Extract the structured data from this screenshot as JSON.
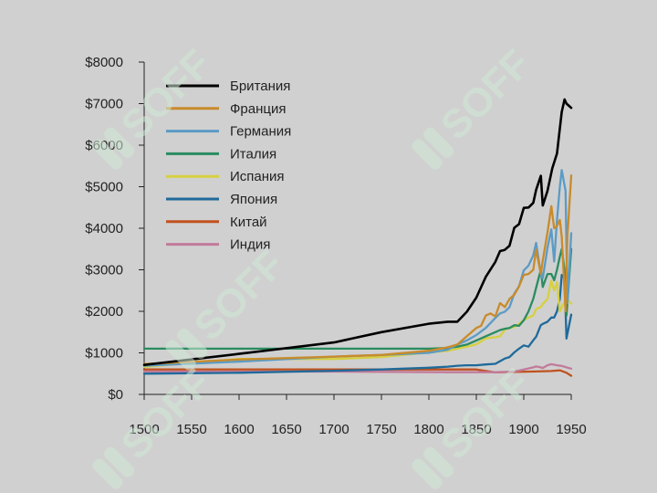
{
  "watermark": {
    "text": "SOFF",
    "color": "#cfe8d6"
  },
  "chart_data": {
    "type": "line",
    "title": "",
    "xlabel": "",
    "ylabel": "",
    "xlim": [
      1500,
      1950
    ],
    "ylim": [
      0,
      8000
    ],
    "x_ticks": [
      1500,
      1550,
      1600,
      1650,
      1700,
      1750,
      1800,
      1850,
      1900,
      1950
    ],
    "x_tick_labels": [
      "1500",
      "1550",
      "1600",
      "1650",
      "1700",
      "1750",
      "1800",
      "1850",
      "1900",
      "1950"
    ],
    "y_ticks": [
      0,
      1000,
      2000,
      3000,
      4000,
      5000,
      6000,
      7000,
      8000
    ],
    "y_tick_labels": [
      "$0",
      "$1000",
      "$2000",
      "$3000",
      "$4000",
      "$5000",
      "$6000",
      "$7000",
      "$8000"
    ],
    "grid": false,
    "legend_position": "top-left",
    "series": [
      {
        "name": "Британия",
        "color": "#000000",
        "x": [
          1500,
          1600,
          1700,
          1750,
          1800,
          1820,
          1830,
          1840,
          1850,
          1860,
          1870,
          1875,
          1880,
          1885,
          1890,
          1895,
          1900,
          1905,
          1910,
          1913,
          1918,
          1920,
          1925,
          1930,
          1935,
          1940,
          1943,
          1945,
          1950
        ],
        "y": [
          710,
          975,
          1250,
          1500,
          1700,
          1750,
          1750,
          1990,
          2330,
          2830,
          3190,
          3450,
          3480,
          3580,
          4010,
          4100,
          4490,
          4500,
          4611,
          4921,
          5262,
          4548,
          4900,
          5440,
          5800,
          6800,
          7100,
          7000,
          6900
        ]
      },
      {
        "name": "Франция",
        "color": "#c98b2b",
        "x": [
          1500,
          1600,
          1700,
          1750,
          1800,
          1820,
          1830,
          1840,
          1850,
          1855,
          1860,
          1865,
          1870,
          1875,
          1880,
          1885,
          1890,
          1895,
          1900,
          1905,
          1910,
          1913,
          1918,
          1920,
          1925,
          1929,
          1932,
          1935,
          1938,
          1940,
          1944,
          1946,
          1950
        ],
        "y": [
          730,
          840,
          910,
          950,
          1050,
          1135,
          1200,
          1400,
          1600,
          1650,
          1900,
          1950,
          1876,
          2200,
          2100,
          2300,
          2400,
          2600,
          2876,
          2900,
          3000,
          3485,
          2900,
          3227,
          3900,
          4532,
          4000,
          4050,
          4200,
          3800,
          2000,
          3800,
          5270
        ]
      },
      {
        "name": "Германия",
        "color": "#5b9bc5",
        "x": [
          1500,
          1600,
          1700,
          1750,
          1800,
          1820,
          1830,
          1840,
          1850,
          1860,
          1870,
          1875,
          1880,
          1885,
          1890,
          1895,
          1900,
          1905,
          1910,
          1913,
          1918,
          1920,
          1925,
          1929,
          1932,
          1935,
          1938,
          1940,
          1944,
          1946,
          1950
        ],
        "y": [
          690,
          790,
          910,
          950,
          1000,
          1077,
          1200,
          1300,
          1428,
          1600,
          1839,
          1950,
          1991,
          2100,
          2428,
          2600,
          2985,
          3100,
          3348,
          3648,
          2900,
          2796,
          3532,
          3973,
          3200,
          4200,
          4994,
          5400,
          4900,
          2200,
          3881
        ]
      },
      {
        "name": "Италия",
        "color": "#2a8c60",
        "x": [
          1500,
          1600,
          1700,
          1750,
          1800,
          1820,
          1830,
          1840,
          1850,
          1860,
          1870,
          1875,
          1880,
          1885,
          1890,
          1895,
          1900,
          1905,
          1910,
          1913,
          1918,
          1920,
          1925,
          1929,
          1932,
          1935,
          1938,
          1940,
          1943,
          1945,
          1950
        ],
        "y": [
          1100,
          1100,
          1100,
          1100,
          1100,
          1117,
          1150,
          1200,
          1300,
          1400,
          1499,
          1550,
          1581,
          1600,
          1667,
          1650,
          1785,
          2000,
          2300,
          2564,
          3000,
          2587,
          2900,
          2900,
          2750,
          3000,
          3316,
          3500,
          3000,
          1900,
          3502
        ]
      },
      {
        "name": "Испания",
        "color": "#d6d040",
        "x": [
          1500,
          1600,
          1700,
          1750,
          1800,
          1820,
          1830,
          1840,
          1850,
          1860,
          1870,
          1875,
          1880,
          1885,
          1890,
          1895,
          1900,
          1905,
          1910,
          1913,
          1918,
          1920,
          1925,
          1929,
          1932,
          1935,
          1938,
          1940,
          1945,
          1950
        ],
        "y": [
          661,
          853,
          853,
          900,
          1008,
          1050,
          1100,
          1150,
          1207,
          1350,
          1376,
          1400,
          1556,
          1600,
          1624,
          1700,
          1786,
          1850,
          1900,
          2056,
          2100,
          2177,
          2300,
          2739,
          2500,
          2700,
          2000,
          2100,
          2300,
          2189
        ]
      },
      {
        "name": "Япония",
        "color": "#1f6a9a",
        "x": [
          1500,
          1600,
          1700,
          1750,
          1800,
          1820,
          1830,
          1840,
          1850,
          1860,
          1870,
          1875,
          1880,
          1885,
          1890,
          1895,
          1900,
          1905,
          1910,
          1913,
          1918,
          1920,
          1925,
          1929,
          1932,
          1935,
          1938,
          1940,
          1943,
          1945,
          1950
        ],
        "y": [
          500,
          520,
          570,
          600,
          641,
          669,
          690,
          700,
          700,
          720,
          737,
          800,
          863,
          900,
          1012,
          1100,
          1180,
          1150,
          1304,
          1387,
          1668,
          1696,
          1750,
          1850,
          1850,
          2000,
          2300,
          2874,
          2800,
          1346,
          1921
        ]
      },
      {
        "name": "Китай",
        "color": "#c0521e",
        "x": [
          1500,
          1600,
          1700,
          1820,
          1850,
          1870,
          1890,
          1913,
          1929,
          1938,
          1945,
          1950
        ],
        "y": [
          600,
          600,
          600,
          600,
          600,
          530,
          540,
          552,
          562,
          580,
          520,
          448
        ]
      },
      {
        "name": "Индия",
        "color": "#c27b9a",
        "x": [
          1500,
          1600,
          1700,
          1820,
          1870,
          1890,
          1900,
          1910,
          1913,
          1918,
          1920,
          1925,
          1929,
          1935,
          1940,
          1945,
          1950
        ],
        "y": [
          550,
          550,
          550,
          533,
          533,
          550,
          599,
          650,
          673,
          650,
          635,
          700,
          728,
          700,
          686,
          650,
          619
        ]
      }
    ]
  }
}
